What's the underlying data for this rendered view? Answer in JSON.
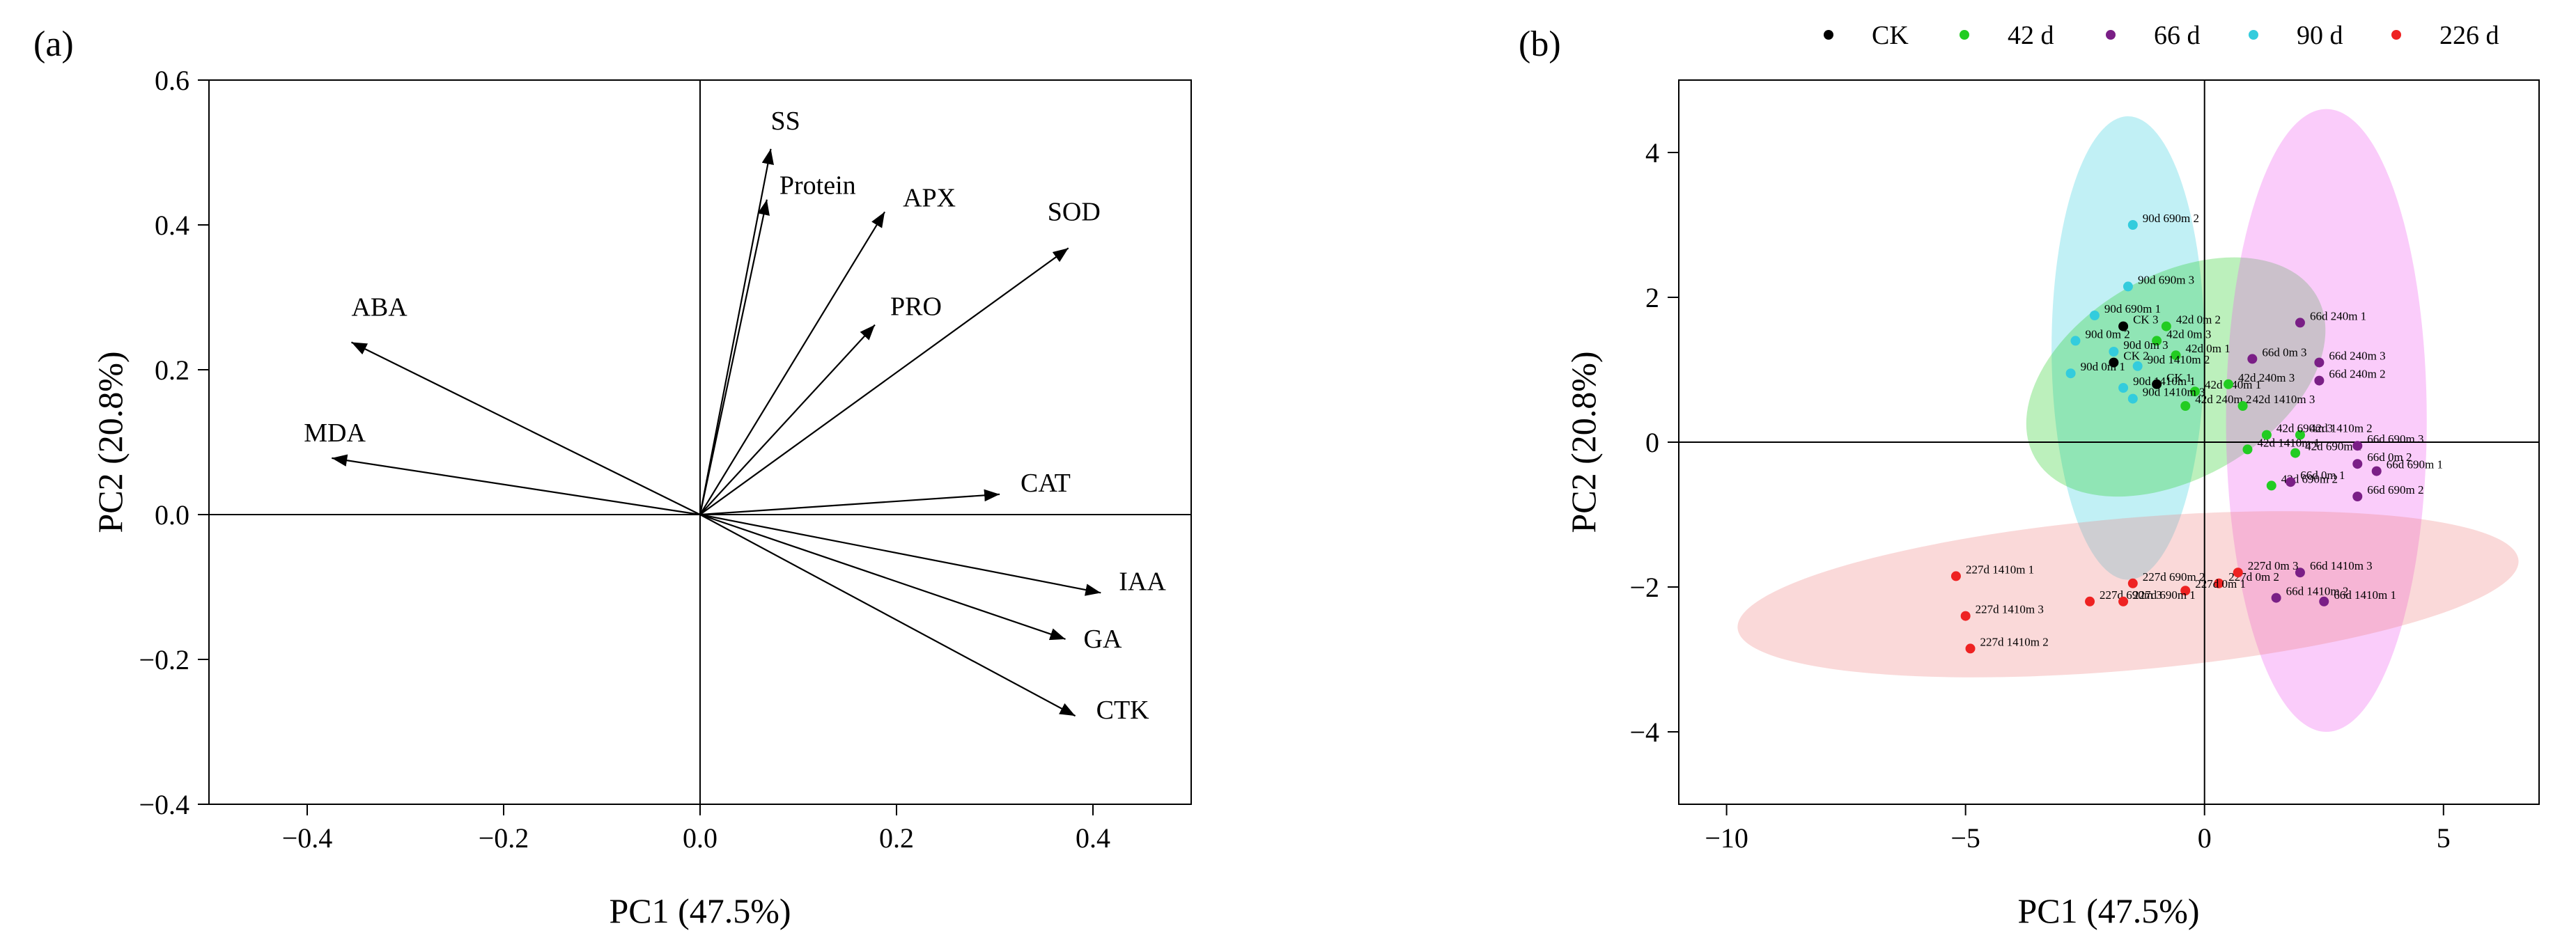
{
  "chart_data": [
    {
      "type": "biplot",
      "panel": "(a)",
      "xlabel": "PC1 (47.5%)",
      "ylabel": "PC2 (20.8%)",
      "xlim": [
        -0.5,
        0.5
      ],
      "ylim": [
        -0.4,
        0.6
      ],
      "xticks": [
        -0.4,
        -0.2,
        0.0,
        0.2,
        0.4
      ],
      "xtick_labels": [
        "−0.4",
        "−0.2",
        "0.0",
        "0.2",
        "0.4"
      ],
      "yticks": [
        -0.4,
        -0.2,
        0.0,
        0.2,
        0.4,
        0.6
      ],
      "ytick_labels": [
        "−0.4",
        "−0.2",
        "0.0",
        "0.2",
        "0.4",
        "0.6"
      ],
      "reference_lines": {
        "x": 0,
        "y": 0
      },
      "vectors": [
        {
          "name": "SS",
          "x": 0.072,
          "y": 0.505
        },
        {
          "name": "Protein",
          "x": 0.068,
          "y": 0.435
        },
        {
          "name": "APX",
          "x": 0.188,
          "y": 0.418
        },
        {
          "name": "SOD",
          "x": 0.375,
          "y": 0.368
        },
        {
          "name": "PRO",
          "x": 0.178,
          "y": 0.262
        },
        {
          "name": "ABA",
          "x": -0.355,
          "y": 0.238
        },
        {
          "name": "MDA",
          "x": -0.375,
          "y": 0.078
        },
        {
          "name": "CAT",
          "x": 0.305,
          "y": 0.028
        },
        {
          "name": "IAA",
          "x": 0.408,
          "y": -0.108
        },
        {
          "name": "GA",
          "x": 0.372,
          "y": -0.172
        },
        {
          "name": "CTK",
          "x": 0.382,
          "y": -0.278
        }
      ]
    },
    {
      "type": "scatter",
      "panel": "(b)",
      "xlabel": "PC1 (47.5%)",
      "ylabel": "PC2 (20.8%)",
      "xlim": [
        -11,
        7
      ],
      "ylim": [
        -5,
        5
      ],
      "xticks": [
        -10,
        -5,
        0,
        5
      ],
      "xtick_labels": [
        "−10",
        "−5",
        "0",
        "5"
      ],
      "yticks": [
        -4,
        -2,
        0,
        2,
        4
      ],
      "ytick_labels": [
        "−4",
        "−2",
        "0",
        "2",
        "4"
      ],
      "reference_lines": {
        "x": 0,
        "y": 0
      },
      "legend": [
        {
          "name": "CK",
          "color": "#000000"
        },
        {
          "name": "42 d",
          "color": "#22cc22"
        },
        {
          "name": "66 d",
          "color": "#7a1f86"
        },
        {
          "name": "90 d",
          "color": "#33ccdd"
        },
        {
          "name": "226 d",
          "color": "#ee2222"
        }
      ],
      "ellipses": [
        {
          "group": "90 d",
          "cx": -1.6,
          "cy": 1.3,
          "rx": 1.6,
          "ry": 3.2,
          "angle_deg": 0,
          "color": "#33ccdd"
        },
        {
          "group": "42 d",
          "cx": -0.6,
          "cy": 0.9,
          "rx": 3.4,
          "ry": 1.4,
          "angle_deg": 30,
          "color": "#22cc22"
        },
        {
          "group": "66 d",
          "cx": 2.55,
          "cy": 0.3,
          "rx": 2.1,
          "ry": 4.3,
          "angle_deg": 0,
          "color": "#ee55ee"
        },
        {
          "group": "226 d",
          "cx": -1.6,
          "cy": -2.1,
          "rx": 8.2,
          "ry": 1.05,
          "angle_deg": 5,
          "color": "#f08080"
        }
      ],
      "series": [
        {
          "name": "CK",
          "color": "#000000",
          "points": [
            {
              "label": "CK 3",
              "x": -1.7,
              "y": 1.6
            },
            {
              "label": "CK 2",
              "x": -1.9,
              "y": 1.1
            },
            {
              "label": "CK 1",
              "x": -1.0,
              "y": 0.8
            }
          ]
        },
        {
          "name": "42 d",
          "color": "#22cc22",
          "points": [
            {
              "label": "42d 0m 2",
              "x": -0.8,
              "y": 1.6
            },
            {
              "label": "42d 0m 3",
              "x": -1.0,
              "y": 1.4
            },
            {
              "label": "42d 0m 1",
              "x": -0.6,
              "y": 1.2
            },
            {
              "label": "42d 240m 1",
              "x": -0.2,
              "y": 0.7
            },
            {
              "label": "42d 240m 2",
              "x": -0.4,
              "y": 0.5
            },
            {
              "label": "42d 240m 3",
              "x": 0.5,
              "y": 0.8
            },
            {
              "label": "42d 1410m 3",
              "x": 0.8,
              "y": 0.5
            },
            {
              "label": "42d 1410m 2",
              "x": 2.0,
              "y": 0.1
            },
            {
              "label": "42d 1410m 1",
              "x": 0.9,
              "y": -0.1
            },
            {
              "label": "42d 690m 3",
              "x": 1.3,
              "y": 0.1
            },
            {
              "label": "42d 690m 1",
              "x": 1.9,
              "y": -0.15
            },
            {
              "label": "42d 690m 2",
              "x": 1.4,
              "y": -0.6
            }
          ]
        },
        {
          "name": "66 d",
          "color": "#7a1f86",
          "points": [
            {
              "label": "66d 240m 1",
              "x": 2.0,
              "y": 1.65
            },
            {
              "label": "66d 240m 3",
              "x": 2.4,
              "y": 1.1
            },
            {
              "label": "66d 240m 2",
              "x": 2.4,
              "y": 0.85
            },
            {
              "label": "66d 0m 3",
              "x": 1.0,
              "y": 1.15
            },
            {
              "label": "66d 690m 3",
              "x": 3.2,
              "y": -0.05
            },
            {
              "label": "66d 0m 2",
              "x": 3.2,
              "y": -0.3
            },
            {
              "label": "66d 690m 1",
              "x": 3.6,
              "y": -0.4
            },
            {
              "label": "66d 0m 1",
              "x": 1.8,
              "y": -0.55
            },
            {
              "label": "66d 690m 2",
              "x": 3.2,
              "y": -0.75
            },
            {
              "label": "66d 1410m 3",
              "x": 2.0,
              "y": -1.8
            },
            {
              "label": "66d 1410m 1",
              "x": 2.5,
              "y": -2.2
            },
            {
              "label": "66d 1410m 2",
              "x": 1.5,
              "y": -2.15
            }
          ]
        },
        {
          "name": "90 d",
          "color": "#33ccdd",
          "points": [
            {
              "label": "90d 690m 2",
              "x": -1.5,
              "y": 3.0
            },
            {
              "label": "90d 690m 3",
              "x": -1.6,
              "y": 2.15
            },
            {
              "label": "90d 690m 1",
              "x": -2.3,
              "y": 1.75
            },
            {
              "label": "90d 0m 2",
              "x": -2.7,
              "y": 1.4
            },
            {
              "label": "90d 0m 3",
              "x": -1.9,
              "y": 1.25
            },
            {
              "label": "90d 1410m 2",
              "x": -1.4,
              "y": 1.05
            },
            {
              "label": "90d 0m 1",
              "x": -2.8,
              "y": 0.95
            },
            {
              "label": "90d 1410m 1",
              "x": -1.7,
              "y": 0.75
            },
            {
              "label": "90d 1410m 3",
              "x": -1.5,
              "y": 0.6
            }
          ]
        },
        {
          "name": "226 d",
          "color": "#ee2222",
          "points": [
            {
              "label": "227d 1410m 1",
              "x": -5.2,
              "y": -1.85
            },
            {
              "label": "227d 1410m 3",
              "x": -5.0,
              "y": -2.4
            },
            {
              "label": "227d 1410m 2",
              "x": -4.9,
              "y": -2.85
            },
            {
              "label": "227d 0m 2",
              "x": 0.3,
              "y": -1.95
            },
            {
              "label": "227d 0m 3",
              "x": 0.7,
              "y": -1.8
            },
            {
              "label": "227d 0m 1",
              "x": -0.4,
              "y": -2.05
            },
            {
              "label": "227d 690m 2",
              "x": -1.5,
              "y": -1.95
            },
            {
              "label": "227d 690m 3",
              "x": -2.4,
              "y": -2.2
            },
            {
              "label": "227d 690m 1",
              "x": -1.7,
              "y": -2.2
            }
          ]
        }
      ]
    }
  ]
}
